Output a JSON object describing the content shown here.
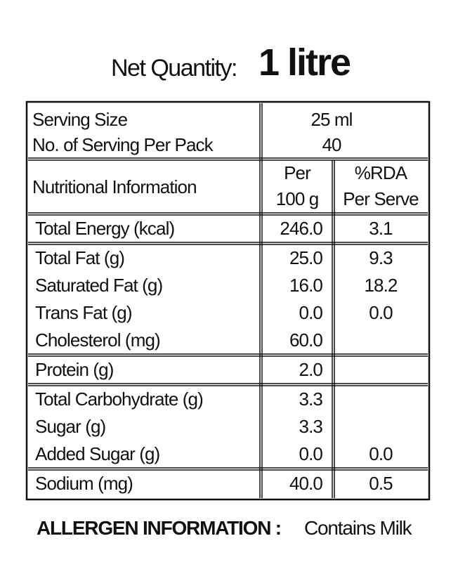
{
  "header": {
    "label": "Net Quantity:",
    "value": "1 litre"
  },
  "serving": [
    {
      "label": "Serving Size",
      "value": "25 ml"
    },
    {
      "label": "No. of Serving Per Pack",
      "value": "40"
    }
  ],
  "table": {
    "columns": [
      {
        "lines": [
          "Nutritional Information"
        ]
      },
      {
        "lines": [
          "Per",
          "100 g"
        ]
      },
      {
        "lines": [
          "%RDA",
          "Per Serve"
        ]
      }
    ],
    "groups": [
      [
        {
          "name": "Total Energy (kcal)",
          "per_100g": "246.0",
          "rda": "3.1"
        }
      ],
      [
        {
          "name": "Total Fat (g)",
          "per_100g": "25.0",
          "rda": "9.3"
        },
        {
          "name": "Saturated Fat (g)",
          "per_100g": "16.0",
          "rda": "18.2"
        },
        {
          "name": "Trans Fat (g)",
          "per_100g": "0.0",
          "rda": "0.0"
        },
        {
          "name": "Cholesterol (mg)",
          "per_100g": "60.0"
        }
      ],
      [
        {
          "name": "Protein (g)",
          "per_100g": "2.0"
        }
      ],
      [
        {
          "name": "Total Carbohydrate (g)",
          "per_100g": "3.3"
        },
        {
          "name": "Sugar (g)",
          "per_100g": "3.3"
        },
        {
          "name": "Added Sugar (g)",
          "per_100g": "0.0",
          "rda": "0.0"
        }
      ],
      [
        {
          "name": "Sodium (mg)",
          "per_100g": "40.0",
          "rda": "0.5"
        }
      ]
    ]
  },
  "allergen": {
    "label": "ALLERGEN INFORMATION :",
    "value": "Contains Milk"
  }
}
